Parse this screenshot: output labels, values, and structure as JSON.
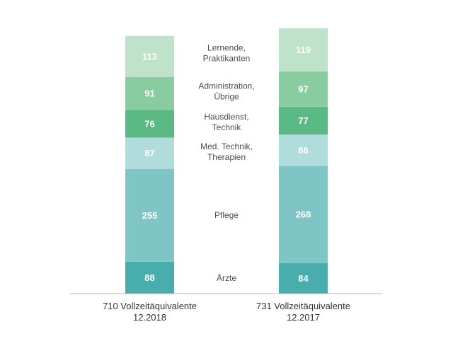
{
  "chart_data": {
    "type": "bar",
    "stacked": true,
    "categories": [
      "710 Vollzeitäquivalente 12.2018",
      "731 Vollzeitäquivalente 12.2017"
    ],
    "category_lines": [
      [
        "710 Vollzeitäquivalente",
        "12.2018"
      ],
      [
        "731 Vollzeitäquivalente",
        "12.2017"
      ]
    ],
    "series": [
      {
        "name": "Ärzte",
        "label_lines": [
          "Ärzte"
        ],
        "values": [
          88,
          84
        ],
        "color": "#4aadad"
      },
      {
        "name": "Pflege",
        "label_lines": [
          "Pflege"
        ],
        "values": [
          255,
          268
        ],
        "color": "#80c5c5"
      },
      {
        "name": "Med. Technik, Therapien",
        "label_lines": [
          "Med. Technik,",
          "Therapien"
        ],
        "values": [
          87,
          86
        ],
        "color": "#b1dcdc"
      },
      {
        "name": "Hausdienst, Technik",
        "label_lines": [
          "Hausdienst,",
          "Technik"
        ],
        "values": [
          76,
          77
        ],
        "color": "#5bba84"
      },
      {
        "name": "Administration, Übrige",
        "label_lines": [
          "Administration,",
          "Übrige"
        ],
        "values": [
          91,
          97
        ],
        "color": "#89cc9f"
      },
      {
        "name": "Lernende, Praktikanten",
        "label_lines": [
          "Lernende,",
          "Praktikanten"
        ],
        "values": [
          113,
          119
        ],
        "color": "#bfe2ca"
      }
    ],
    "title": "",
    "xlabel": "",
    "ylabel": "",
    "ylim": [
      0,
      731
    ],
    "grid": false,
    "legend": "between-bars"
  }
}
